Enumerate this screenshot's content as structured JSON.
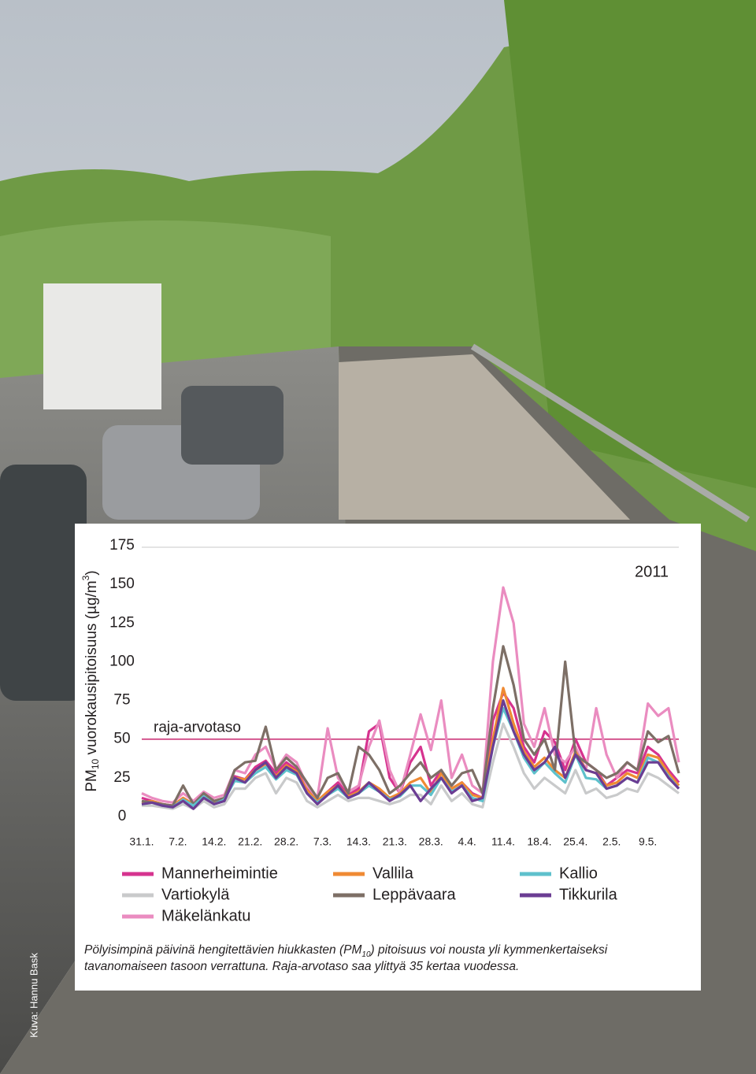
{
  "chart_data": {
    "type": "line",
    "year": "2011",
    "ylabel": {
      "text": "PM",
      "sub": "10",
      "rest": " vuorokausipitoisuus (µg/m",
      "sup": "3",
      "end": ")"
    },
    "x": [
      0,
      2,
      4,
      6,
      8,
      10,
      12,
      14,
      16,
      18,
      20,
      22,
      24,
      26,
      28,
      30,
      32,
      34,
      36,
      38,
      40,
      42,
      44,
      46,
      48,
      50,
      52,
      54,
      56,
      58,
      60,
      62,
      64,
      66,
      68,
      70,
      72,
      74,
      76,
      78,
      80,
      82,
      84,
      86,
      88,
      90,
      92,
      94,
      96,
      98,
      100,
      102,
      104
    ],
    "xlim": [
      0,
      104
    ],
    "xticks": [
      {
        "value": 0,
        "label": "31.1."
      },
      {
        "value": 7,
        "label": "7.2."
      },
      {
        "value": 14,
        "label": "14.2."
      },
      {
        "value": 21,
        "label": "21.2."
      },
      {
        "value": 28,
        "label": "28.2."
      },
      {
        "value": 35,
        "label": "7.3."
      },
      {
        "value": 42,
        "label": "14.3."
      },
      {
        "value": 49,
        "label": "21.3."
      },
      {
        "value": 56,
        "label": "28.3."
      },
      {
        "value": 63,
        "label": "4.4."
      },
      {
        "value": 70,
        "label": "11.4."
      },
      {
        "value": 77,
        "label": "18.4."
      },
      {
        "value": 84,
        "label": "25.4."
      },
      {
        "value": 91,
        "label": "2.5."
      },
      {
        "value": 98,
        "label": "9.5."
      }
    ],
    "ylim": [
      0,
      175
    ],
    "yticks": [
      0,
      25,
      50,
      75,
      100,
      125,
      150,
      175
    ],
    "limit": {
      "value": 50,
      "label": "raja-arvotaso",
      "color": "#c8246e"
    },
    "series": [
      {
        "name": "Mannerheimintie",
        "color": "#d6338f",
        "values": [
          12,
          10,
          8,
          7,
          12,
          8,
          14,
          10,
          12,
          26,
          24,
          32,
          36,
          28,
          35,
          30,
          18,
          10,
          16,
          22,
          14,
          18,
          55,
          60,
          25,
          15,
          35,
          45,
          20,
          30,
          18,
          22,
          15,
          12,
          62,
          80,
          70,
          45,
          35,
          55,
          48,
          30,
          50,
          35,
          30,
          20,
          25,
          30,
          28,
          45,
          40,
          30,
          22
        ]
      },
      {
        "name": "Vartiokylä",
        "color": "#c9cacb",
        "values": [
          7,
          7,
          6,
          5,
          8,
          5,
          10,
          6,
          8,
          18,
          18,
          25,
          28,
          15,
          25,
          22,
          10,
          6,
          10,
          14,
          10,
          12,
          12,
          10,
          8,
          10,
          14,
          14,
          8,
          20,
          10,
          15,
          8,
          6,
          35,
          60,
          45,
          28,
          18,
          25,
          20,
          15,
          30,
          15,
          18,
          12,
          14,
          18,
          16,
          28,
          25,
          20,
          15
        ]
      },
      {
        "name": "Mäkelänkatu",
        "color": "#ea8cc0",
        "values": [
          15,
          12,
          10,
          9,
          15,
          10,
          16,
          12,
          14,
          30,
          28,
          40,
          45,
          30,
          40,
          35,
          20,
          12,
          57,
          25,
          16,
          20,
          45,
          62,
          30,
          15,
          40,
          66,
          43,
          75,
          25,
          40,
          20,
          15,
          100,
          148,
          125,
          60,
          45,
          70,
          40,
          35,
          45,
          30,
          70,
          40,
          25,
          35,
          30,
          73,
          65,
          70,
          35
        ]
      },
      {
        "name": "Vallila",
        "color": "#ef8a33",
        "values": [
          9,
          10,
          8,
          7,
          12,
          8,
          14,
          9,
          12,
          25,
          24,
          30,
          34,
          26,
          33,
          29,
          17,
          10,
          16,
          20,
          13,
          16,
          22,
          18,
          12,
          15,
          22,
          25,
          15,
          28,
          18,
          22,
          14,
          12,
          50,
          83,
          60,
          42,
          32,
          38,
          30,
          25,
          42,
          30,
          28,
          20,
          22,
          28,
          25,
          40,
          38,
          28,
          20
        ]
      },
      {
        "name": "Leppävaara",
        "color": "#7d6f66",
        "values": [
          10,
          9,
          8,
          7,
          20,
          8,
          15,
          10,
          12,
          30,
          35,
          36,
          58,
          30,
          38,
          32,
          22,
          12,
          25,
          28,
          15,
          45,
          40,
          30,
          15,
          20,
          28,
          35,
          25,
          30,
          20,
          28,
          30,
          15,
          70,
          110,
          85,
          50,
          40,
          50,
          30,
          100,
          40,
          35,
          30,
          25,
          28,
          35,
          30,
          55,
          48,
          52,
          28
        ]
      },
      {
        "name": "Kallio",
        "color": "#5ec1cc",
        "values": [
          8,
          9,
          7,
          6,
          11,
          7,
          13,
          8,
          11,
          23,
          22,
          28,
          32,
          24,
          30,
          27,
          15,
          9,
          14,
          18,
          12,
          15,
          20,
          16,
          11,
          13,
          20,
          20,
          14,
          25,
          16,
          20,
          12,
          10,
          45,
          70,
          55,
          38,
          28,
          35,
          28,
          22,
          40,
          25,
          24,
          18,
          20,
          25,
          22,
          38,
          35,
          26,
          18
        ]
      },
      {
        "name": "Tikkurila",
        "color": "#6b3d93",
        "values": [
          8,
          9,
          7,
          6,
          10,
          5,
          12,
          8,
          10,
          25,
          22,
          30,
          35,
          25,
          32,
          28,
          15,
          8,
          14,
          20,
          12,
          15,
          22,
          16,
          10,
          14,
          20,
          10,
          18,
          25,
          15,
          20,
          10,
          12,
          45,
          75,
          55,
          40,
          30,
          35,
          45,
          25,
          40,
          30,
          28,
          18,
          20,
          25,
          22,
          35,
          35,
          25,
          18
        ]
      }
    ],
    "caption": {
      "line1a": "Pölyisimpinä päivinä hengitettävien hiukkasten (PM",
      "sub": "10",
      "line1b": ") pitoisuus voi nousta yli kymmenkertaiseksi",
      "line2": "tavanomaiseen tasoon verrattuna. Raja-arvotaso saa ylittyä 35 kertaa vuodessa."
    },
    "credit": "Kuva: Hannu Bask"
  }
}
